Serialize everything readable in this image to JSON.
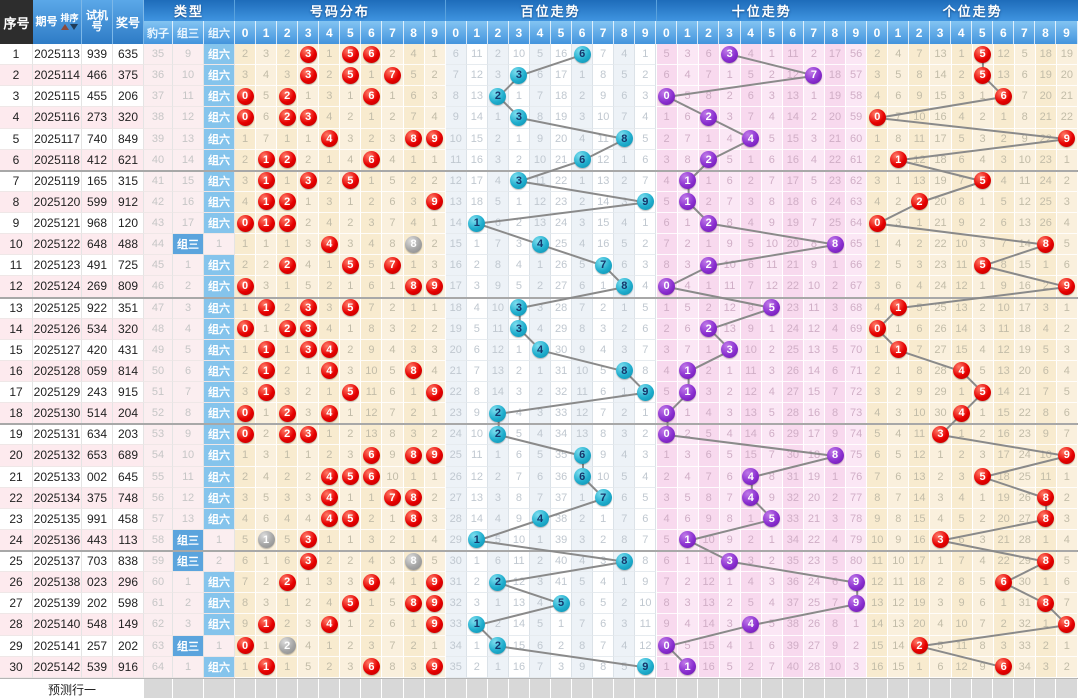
{
  "header": {
    "col_seq": "序号",
    "col_period": "期号",
    "sort_label": "排序",
    "col_test": "试机号",
    "col_test_l1": "试机",
    "col_test_l2": "号",
    "col_prize": "奖号",
    "col_type": "类型",
    "sub_baozi": "豹子",
    "sub_zusan": "组三",
    "sub_zuliu": "组六",
    "sec_dist": "号码分布",
    "sec_bai": "百位走势",
    "sec_shi": "十位走势",
    "sec_ge": "个位走势",
    "digits": [
      "0",
      "1",
      "2",
      "3",
      "4",
      "5",
      "6",
      "7",
      "8",
      "9"
    ]
  },
  "footer": {
    "label": "预测行一"
  },
  "colors": {
    "header_blue": "#2e7cc6",
    "digit_bar_blue": "#4394dd",
    "seq_header_dark": "#2d2d2d",
    "row_pink": "#fdeaee",
    "zusan_cell_blue": "#5ba4dd",
    "zuliu_cell_blue": "#85c4ec",
    "cream_bg": "#f8ebcf",
    "bai_bg": "#edf2f7",
    "shi_bg": "#f8d9ee",
    "ball_red": "#e60000",
    "ball_gray": "#a5a5a5",
    "ball_cyan": "#1fadcd",
    "ball_purple": "#8a2fd0",
    "trend_line": "#8a8a8a"
  },
  "chart": {
    "rows": [
      {
        "n": "1",
        "period": "2025113",
        "test": "939",
        "prize": "635",
        "baozi": "35",
        "zusan": "9",
        "zuliu": "组六"
      },
      {
        "n": "2",
        "period": "2025114",
        "test": "466",
        "prize": "375",
        "baozi": "36",
        "zusan": "10",
        "zuliu": "组六"
      },
      {
        "n": "3",
        "period": "2025115",
        "test": "455",
        "prize": "206",
        "baozi": "37",
        "zusan": "11",
        "zuliu": "组六"
      },
      {
        "n": "4",
        "period": "2025116",
        "test": "273",
        "prize": "320",
        "baozi": "38",
        "zusan": "12",
        "zuliu": "组六"
      },
      {
        "n": "5",
        "period": "2025117",
        "test": "740",
        "prize": "849",
        "baozi": "39",
        "zusan": "13",
        "zuliu": "组六"
      },
      {
        "n": "6",
        "period": "2025118",
        "test": "412",
        "prize": "621",
        "baozi": "40",
        "zusan": "14",
        "zuliu": "组六"
      },
      {
        "n": "7",
        "period": "2025119",
        "test": "165",
        "prize": "315",
        "baozi": "41",
        "zusan": "15",
        "zuliu": "组六"
      },
      {
        "n": "8",
        "period": "2025120",
        "test": "599",
        "prize": "912",
        "baozi": "42",
        "zusan": "16",
        "zuliu": "组六"
      },
      {
        "n": "9",
        "period": "2025121",
        "test": "968",
        "prize": "120",
        "baozi": "43",
        "zusan": "17",
        "zuliu": "组六"
      },
      {
        "n": "10",
        "period": "2025122",
        "test": "648",
        "prize": "488",
        "baozi": "44",
        "zusan": "组三",
        "zuliu": "1"
      },
      {
        "n": "11",
        "period": "2025123",
        "test": "491",
        "prize": "725",
        "baozi": "45",
        "zusan": "1",
        "zuliu": "组六"
      },
      {
        "n": "12",
        "period": "2025124",
        "test": "269",
        "prize": "809",
        "baozi": "46",
        "zusan": "2",
        "zuliu": "组六"
      },
      {
        "n": "13",
        "period": "2025125",
        "test": "922",
        "prize": "351",
        "baozi": "47",
        "zusan": "3",
        "zuliu": "组六"
      },
      {
        "n": "14",
        "period": "2025126",
        "test": "534",
        "prize": "320",
        "baozi": "48",
        "zusan": "4",
        "zuliu": "组六"
      },
      {
        "n": "15",
        "period": "2025127",
        "test": "420",
        "prize": "431",
        "baozi": "49",
        "zusan": "5",
        "zuliu": "组六"
      },
      {
        "n": "16",
        "period": "2025128",
        "test": "059",
        "prize": "814",
        "baozi": "50",
        "zusan": "6",
        "zuliu": "组六"
      },
      {
        "n": "17",
        "period": "2025129",
        "test": "243",
        "prize": "915",
        "baozi": "51",
        "zusan": "7",
        "zuliu": "组六"
      },
      {
        "n": "18",
        "period": "2025130",
        "test": "514",
        "prize": "204",
        "baozi": "52",
        "zusan": "8",
        "zuliu": "组六"
      },
      {
        "n": "19",
        "period": "2025131",
        "test": "634",
        "prize": "203",
        "baozi": "53",
        "zusan": "9",
        "zuliu": "组六"
      },
      {
        "n": "20",
        "period": "2025132",
        "test": "653",
        "prize": "689",
        "baozi": "54",
        "zusan": "10",
        "zuliu": "组六"
      },
      {
        "n": "21",
        "period": "2025133",
        "test": "002",
        "prize": "645",
        "baozi": "55",
        "zusan": "11",
        "zuliu": "组六"
      },
      {
        "n": "22",
        "period": "2025134",
        "test": "375",
        "prize": "748",
        "baozi": "56",
        "zusan": "12",
        "zuliu": "组六"
      },
      {
        "n": "23",
        "period": "2025135",
        "test": "991",
        "prize": "458",
        "baozi": "57",
        "zusan": "13",
        "zuliu": "组六"
      },
      {
        "n": "24",
        "period": "2025136",
        "test": "443",
        "prize": "113",
        "baozi": "58",
        "zusan": "组三",
        "zuliu": "1"
      },
      {
        "n": "25",
        "period": "2025137",
        "test": "703",
        "prize": "838",
        "baozi": "59",
        "zusan": "组三",
        "zuliu": "2"
      },
      {
        "n": "26",
        "period": "2025138",
        "test": "023",
        "prize": "296",
        "baozi": "60",
        "zusan": "1",
        "zuliu": "组六"
      },
      {
        "n": "27",
        "period": "2025139",
        "test": "202",
        "prize": "598",
        "baozi": "61",
        "zusan": "2",
        "zuliu": "组六"
      },
      {
        "n": "28",
        "period": "2025140",
        "test": "548",
        "prize": "149",
        "baozi": "62",
        "zusan": "3",
        "zuliu": "组六"
      },
      {
        "n": "29",
        "period": "2025141",
        "test": "257",
        "prize": "202",
        "baozi": "63",
        "zusan": "组三",
        "zuliu": "1"
      },
      {
        "n": "30",
        "period": "2025142",
        "test": "539",
        "prize": "916",
        "baozi": "64",
        "zusan": "1",
        "zuliu": "组六"
      }
    ],
    "miss_seeds": {
      "dist": [
        1,
        2,
        1,
        0,
        0,
        0,
        0,
        1,
        3,
        0
      ],
      "bai": [
        5,
        10,
        1,
        9,
        4,
        15,
        0,
        6,
        3,
        0
      ],
      "shi": [
        4,
        2,
        5,
        0,
        3,
        0,
        10,
        1,
        16,
        55
      ],
      "ge": [
        1,
        3,
        6,
        12,
        0,
        0,
        11,
        4,
        17,
        18
      ]
    }
  }
}
